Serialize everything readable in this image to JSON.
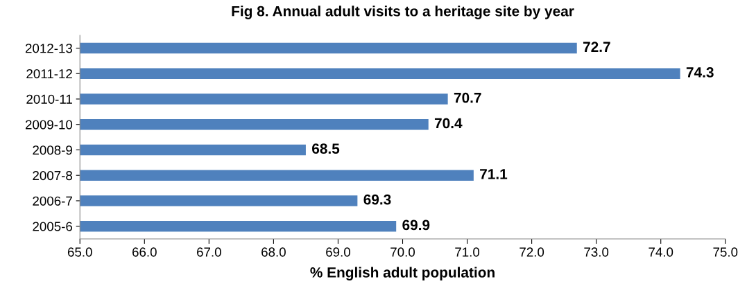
{
  "chart_data": {
    "type": "bar",
    "orientation": "horizontal",
    "title": "Fig 8. Annual adult visits to a heritage site by year",
    "xlabel": "% English adult population",
    "categories": [
      "2012-13",
      "2011-12",
      "2010-11",
      "2009-10",
      "2008-9",
      "2007-8",
      "2006-7",
      "2005-6"
    ],
    "values": [
      72.7,
      74.3,
      70.7,
      70.4,
      68.5,
      71.1,
      69.3,
      69.9
    ],
    "color": "#4f81bd",
    "xlim": [
      65,
      75
    ],
    "xticks": [
      {
        "value": 65,
        "label": "65.0"
      },
      {
        "value": 66,
        "label": "66.0"
      },
      {
        "value": 67,
        "label": "67.0"
      },
      {
        "value": 68,
        "label": "68.0"
      },
      {
        "value": 69,
        "label": "69.0"
      },
      {
        "value": 70,
        "label": "70.0"
      },
      {
        "value": 71,
        "label": "71.0"
      },
      {
        "value": 72,
        "label": "72.0"
      },
      {
        "value": 73,
        "label": "73.0"
      },
      {
        "value": 74,
        "label": "74.0"
      },
      {
        "value": 75,
        "label": "75.0"
      }
    ],
    "data_labels": true,
    "grid": false,
    "legend": false
  }
}
